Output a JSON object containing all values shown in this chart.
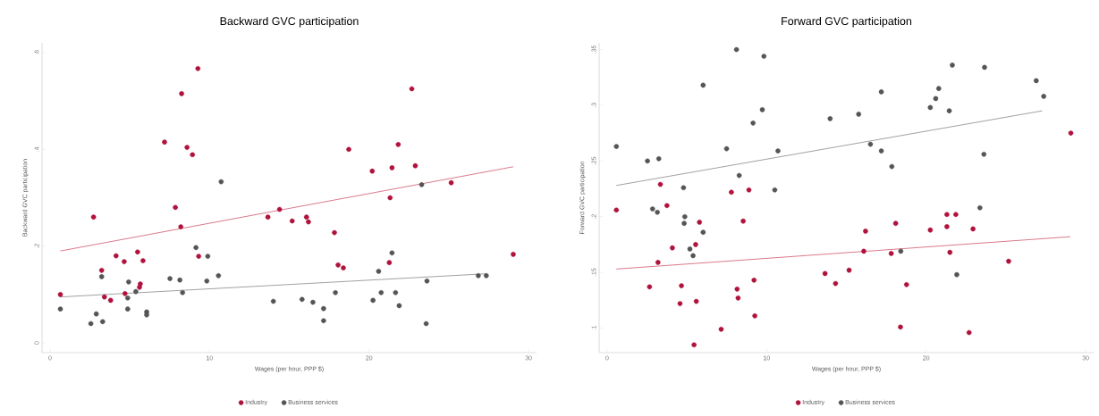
{
  "chart_data": [
    {
      "type": "scatter",
      "title": "Backward GVC participation",
      "xlabel": "Wages (per hour, PPP $)",
      "ylabel": "Backward GVC participation",
      "legend": "bottom",
      "xlim": [
        -0.5,
        30.5
      ],
      "ylim": [
        -0.02,
        0.62
      ],
      "xticks": [
        0,
        10,
        20,
        30
      ],
      "yticks": [
        0,
        {
          "value": 0.2,
          "label": ".2"
        },
        {
          "value": 0.4,
          "label": ".4"
        },
        {
          "value": 0.6,
          "label": ".6"
        }
      ],
      "series": [
        {
          "name": "Industry",
          "color": "#b0123c",
          "marker": "circle",
          "x": [
            0.65,
            2.73,
            3.24,
            3.41,
            3.8,
            4.14,
            4.65,
            4.7,
            5.49,
            5.83,
            5.66,
            5.61,
            7.18,
            7.86,
            8.25,
            8.2,
            8.59,
            8.93,
            9.27,
            9.32,
            13.66,
            14.39,
            15.18,
            16.08,
            16.2,
            17.83,
            18.06,
            18.39,
            18.73,
            20.2,
            21.27,
            21.32,
            21.44,
            21.83,
            22.68,
            22.9,
            25.15,
            29.04
          ],
          "values": [
            0.1,
            0.26,
            0.15,
            0.095,
            0.088,
            0.18,
            0.168,
            0.102,
            0.188,
            0.17,
            0.122,
            0.115,
            0.415,
            0.28,
            0.515,
            0.24,
            0.404,
            0.389,
            0.567,
            0.179,
            0.26,
            0.276,
            0.252,
            0.26,
            0.25,
            0.228,
            0.161,
            0.155,
            0.4,
            0.355,
            0.166,
            0.3,
            0.362,
            0.41,
            0.525,
            0.366,
            0.331,
            0.183
          ]
        },
        {
          "name": "Business services",
          "color": "#555555",
          "marker": "circle",
          "x": [
            0.65,
            2.56,
            2.9,
            3.24,
            3.3,
            4.93,
            4.87,
            4.87,
            5.38,
            6.06,
            6.06,
            7.52,
            8.14,
            8.31,
            9.15,
            9.83,
            9.89,
            10.56,
            10.73,
            14.0,
            15.8,
            16.48,
            17.15,
            17.15,
            17.89,
            20.25,
            20.76,
            21.44,
            20.6,
            21.66,
            21.89,
            23.3,
            23.63,
            23.58,
            26.85,
            27.35
          ],
          "values": [
            0.07,
            0.04,
            0.06,
            0.137,
            0.044,
            0.126,
            0.07,
            0.093,
            0.106,
            0.064,
            0.058,
            0.133,
            0.13,
            0.104,
            0.197,
            0.128,
            0.179,
            0.139,
            0.333,
            0.086,
            0.09,
            0.084,
            0.071,
            0.046,
            0.104,
            0.088,
            0.104,
            0.186,
            0.148,
            0.104,
            0.077,
            0.327,
            0.128,
            0.04,
            0.139,
            0.139
          ]
        },
        {
          "type": "line",
          "color": "#c8405a",
          "marker": "none",
          "line_style": "solid",
          "x": [
            0.65,
            29.04
          ],
          "values": [
            0.19,
            0.364
          ]
        },
        {
          "type": "line",
          "color": "#777777",
          "marker": "none",
          "line_style": "solid",
          "x": [
            0.65,
            27.4
          ],
          "values": [
            0.095,
            0.143
          ]
        }
      ]
    },
    {
      "type": "scatter",
      "title": "Forward GVC participation",
      "xlabel": "Wages (per hour, PPP $)",
      "ylabel": "Forward GVC participation",
      "legend": "bottom",
      "xlim": [
        -0.5,
        30.5
      ],
      "ylim": [
        0.078,
        0.356
      ],
      "xticks": [
        0,
        10,
        20,
        30
      ],
      "yticks": [
        {
          "value": 0.1,
          "label": ".1"
        },
        {
          "value": 0.15,
          "label": ".15"
        },
        {
          "value": 0.2,
          "label": ".2"
        },
        {
          "value": 0.25,
          "label": ".25"
        },
        {
          "value": 0.3,
          "label": ".3"
        },
        {
          "value": 0.35,
          "label": ".35"
        }
      ],
      "series": [
        {
          "name": "Industry",
          "color": "#b0123c",
          "marker": "circle",
          "x": [
            0.58,
            2.66,
            3.19,
            3.34,
            3.75,
            4.09,
            4.66,
            4.57,
            5.59,
            5.55,
            5.79,
            5.45,
            7.15,
            7.79,
            8.15,
            8.21,
            8.89,
            8.53,
            9.21,
            9.26,
            13.66,
            14.32,
            15.17,
            16.2,
            16.09,
            17.81,
            18.09,
            18.39,
            18.77,
            20.26,
            21.3,
            21.86,
            21.3,
            21.49,
            22.94,
            22.69,
            25.17,
            29.07
          ],
          "values": [
            0.206,
            0.137,
            0.159,
            0.229,
            0.21,
            0.172,
            0.138,
            0.122,
            0.124,
            0.175,
            0.195,
            0.085,
            0.099,
            0.222,
            0.135,
            0.127,
            0.224,
            0.196,
            0.143,
            0.111,
            0.149,
            0.14,
            0.152,
            0.187,
            0.169,
            0.167,
            0.194,
            0.101,
            0.139,
            0.188,
            0.202,
            0.202,
            0.191,
            0.168,
            0.189,
            0.096,
            0.16,
            0.275
          ]
        },
        {
          "name": "Business services",
          "color": "#555555",
          "marker": "circle",
          "x": [
            0.58,
            2.53,
            3.24,
            2.85,
            3.15,
            4.79,
            4.87,
            4.83,
            5.19,
            5.39,
            6.02,
            6.02,
            7.49,
            8.11,
            8.28,
            9.15,
            9.73,
            9.83,
            10.71,
            10.51,
            13.98,
            15.77,
            17.19,
            16.51,
            17.19,
            17.85,
            18.41,
            20.26,
            20.6,
            20.79,
            21.45,
            21.64,
            21.92,
            23.37,
            23.62,
            23.66,
            26.9,
            27.37
          ],
          "values": [
            0.263,
            0.25,
            0.252,
            0.207,
            0.204,
            0.226,
            0.2,
            0.194,
            0.171,
            0.165,
            0.186,
            0.318,
            0.261,
            0.35,
            0.237,
            0.284,
            0.296,
            0.344,
            0.259,
            0.224,
            0.288,
            0.292,
            0.312,
            0.265,
            0.259,
            0.245,
            0.169,
            0.298,
            0.306,
            0.315,
            0.295,
            0.336,
            0.148,
            0.208,
            0.256,
            0.334,
            0.322,
            0.308
          ]
        },
        {
          "type": "line",
          "color": "#777777",
          "marker": "none",
          "line_style": "solid",
          "x": [
            0.58,
            27.28
          ],
          "values": [
            0.228,
            0.295
          ]
        },
        {
          "type": "line",
          "color": "#c8405a",
          "marker": "none",
          "line_style": "solid",
          "x": [
            0.58,
            29.03
          ],
          "values": [
            0.153,
            0.182
          ]
        }
      ]
    }
  ]
}
